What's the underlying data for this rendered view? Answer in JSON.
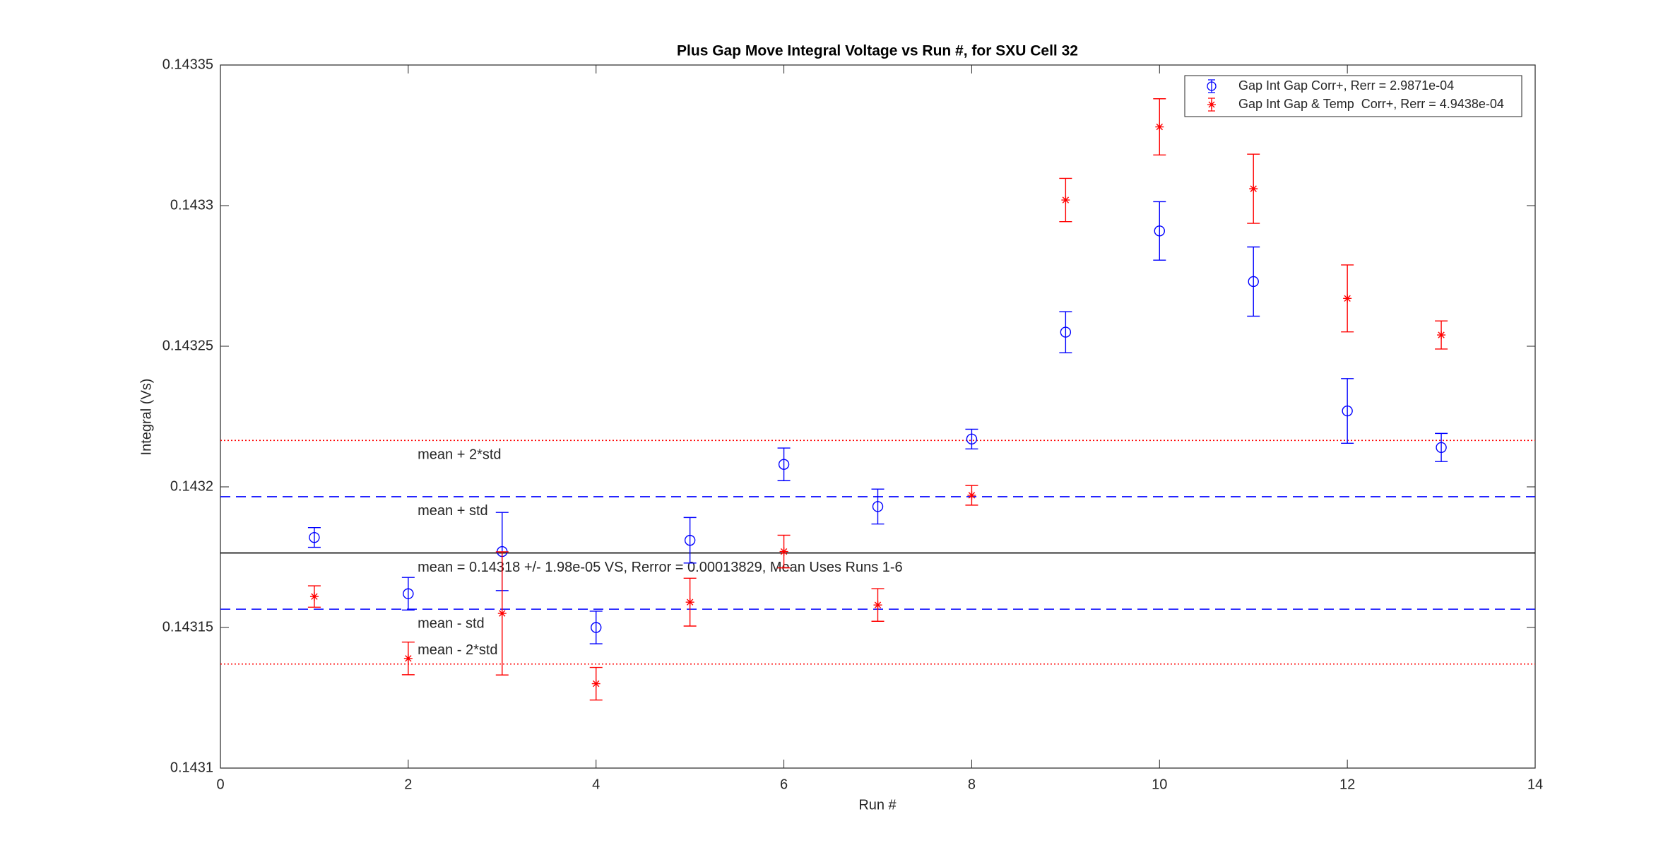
{
  "chart_data": {
    "type": "errorbar",
    "title": "Plus Gap Move Integral Voltage vs Run #, for SXU Cell 32",
    "xlabel": "Run #",
    "ylabel": "Integral (Vs)",
    "x": [
      1,
      2,
      3,
      4,
      5,
      6,
      7,
      8,
      9,
      10,
      11,
      12,
      13
    ],
    "xlim": [
      0,
      14
    ],
    "xticks": [
      0,
      2,
      4,
      6,
      8,
      10,
      12,
      14
    ],
    "ylim": [
      0.1431,
      0.14335
    ],
    "yticks": [
      0.1431,
      0.14315,
      0.1432,
      0.14325,
      0.1433,
      0.14335
    ],
    "legend": "upper right",
    "series": [
      {
        "name": "Gap Int Gap Corr+, Rerr = 2.9871e-04",
        "color": "#0000ff",
        "marker": "o",
        "values": [
          0.143182,
          0.143162,
          0.143177,
          0.14315,
          0.143181,
          0.143208,
          0.143193,
          0.143217,
          0.143255,
          0.143291,
          0.143273,
          0.143227,
          0.143214
        ],
        "errors": [
          3.5e-06,
          5.8e-06,
          1.39e-05,
          5.8e-06,
          8.1e-06,
          5.8e-06,
          6.2e-06,
          3.5e-06,
          7.3e-06,
          1.04e-05,
          1.23e-05,
          1.15e-05,
          5e-06
        ]
      },
      {
        "name": "Gap Int Gap & Temp  Corr+, Rerr = 4.9438e-04",
        "color": "#ff0000",
        "marker": "*",
        "values": [
          0.143161,
          0.143139,
          0.143155,
          0.14313,
          0.143159,
          0.143177,
          0.143158,
          0.143197,
          0.143302,
          0.143328,
          0.143306,
          0.143267,
          0.143254
        ],
        "errors": [
          3.8e-06,
          5.8e-06,
          2.19e-05,
          5.8e-06,
          8.5e-06,
          5.8e-06,
          5.8e-06,
          3.5e-06,
          7.7e-06,
          1e-05,
          1.23e-05,
          1.19e-05,
          5e-06
        ]
      }
    ],
    "reference_lines": [
      {
        "value": 0.1432165,
        "color": "#ff0000",
        "style": "dotted",
        "label": "mean + 2*std"
      },
      {
        "value": 0.1431965,
        "color": "#0000ff",
        "style": "dashed",
        "label": "mean + std"
      },
      {
        "value": 0.1431765,
        "color": "#000000",
        "style": "solid",
        "label": "mean = 0.14318 +/- 1.98e-05 VS, Rerror = 0.00013829, Mean Uses Runs 1-6"
      },
      {
        "value": 0.1431565,
        "color": "#0000ff",
        "style": "dashed",
        "label": "mean - std"
      },
      {
        "value": 0.143137,
        "color": "#ff0000",
        "style": "dotted",
        "label": "mean - 2*std"
      }
    ]
  }
}
